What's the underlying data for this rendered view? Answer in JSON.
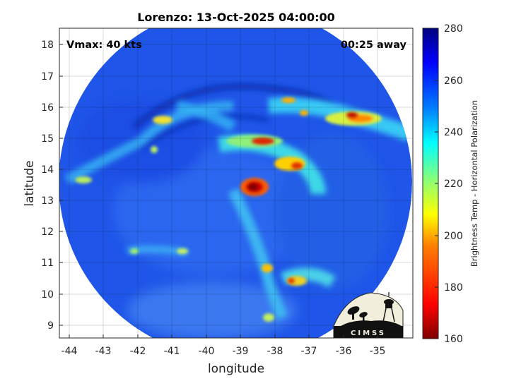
{
  "title": "Lorenzo: 13-Oct-2025 04:00:00",
  "vmax_label": "Vmax: 40 kts",
  "time_away": "00:25 away",
  "logo_text": "CIMSS",
  "chart_data": {
    "type": "heatmap",
    "xlabel": "longitude",
    "ylabel": "latitude",
    "xlim": [
      -44.6,
      -34.2
    ],
    "ylim": [
      8.6,
      18.6
    ],
    "xticks": [
      "-44",
      "-43",
      "-42",
      "-41",
      "-40",
      "-39",
      "-38",
      "-37",
      "-36",
      "-35"
    ],
    "yticks": [
      "9",
      "10",
      "11",
      "12",
      "13",
      "14",
      "15",
      "16",
      "17",
      "18"
    ],
    "grid": true,
    "swath": {
      "center_lon": -39.4,
      "center_lat": 13.7,
      "radius_deg": 5.1
    },
    "features": [
      {
        "name": "eye",
        "lon": -38.7,
        "lat": 13.45,
        "tb_min": 165
      },
      {
        "name": "northern rainband",
        "lon": -38.0,
        "lat": 14.8,
        "tb_min": 175
      },
      {
        "name": "northeast band",
        "lon": -35.8,
        "lat": 15.7,
        "tb_min": 185
      },
      {
        "name": "southern band",
        "lon": -37.2,
        "lat": 10.5,
        "tb_min": 190
      }
    ],
    "colorbar": {
      "label": "Brightness Temp - Horizontal Polarization",
      "min": 160,
      "max": 280,
      "ticks": [
        "160",
        "180",
        "200",
        "220",
        "240",
        "260",
        "280"
      ],
      "colormap": [
        "#7f0000",
        "#ff0000",
        "#ff8000",
        "#ffff00",
        "#80ff80",
        "#00ffff",
        "#0080ff",
        "#0000ff",
        "#00007f"
      ]
    }
  }
}
